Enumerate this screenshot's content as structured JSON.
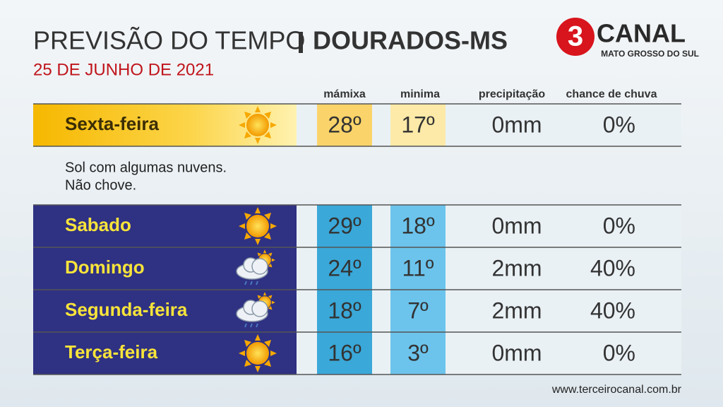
{
  "header": {
    "title": "PREVISÃO DO TEMPO",
    "location": "DOURADOS-MS",
    "date": "25 DE JUNHO DE 2021"
  },
  "logo": {
    "number": "3",
    "name": "CANAL",
    "region": "MATO GROSSO DO SUL"
  },
  "table": {
    "columns": [
      "mámixa",
      "minima",
      "precipitação",
      "chance de chuva"
    ],
    "rows": [
      [
        "Sexta-feira",
        "28º",
        "17º",
        "0mm",
        "0%"
      ],
      [
        "Sabado",
        "29º",
        "18º",
        "0mm",
        "0%"
      ],
      [
        "Domingo",
        "24º",
        "11º",
        "2mm",
        "40%"
      ],
      [
        "Segunda-feira",
        "18º",
        "7º",
        "2mm",
        "40%"
      ],
      [
        "Terça-feira",
        "16º",
        "3º",
        "0mm",
        "0%"
      ]
    ]
  },
  "note": [
    "Sol com algumas nuvens.",
    "Não chove."
  ],
  "footer": "www.terceirocanal.com.br"
}
